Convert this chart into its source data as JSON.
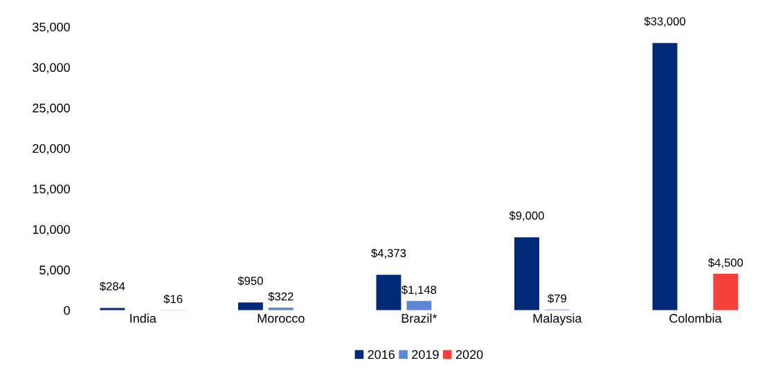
{
  "chart_data": {
    "type": "bar",
    "categories": [
      "India",
      "Morocco",
      "Brazil*",
      "Malaysia",
      "Colombia"
    ],
    "series": [
      {
        "name": "2016",
        "color": "#002a78",
        "values": [
          284,
          950,
          4373,
          9000,
          33000
        ],
        "value_labels": [
          "$284",
          "$950",
          "$4,373",
          "$9,000",
          "$33,000"
        ]
      },
      {
        "name": "2019",
        "color": "#5b87d6",
        "values": [
          null,
          322,
          1148,
          79,
          null
        ],
        "value_labels": [
          null,
          "$322",
          "$1,148",
          "$79",
          null
        ]
      },
      {
        "name": "2020",
        "color": "#f5403a",
        "values": [
          16,
          null,
          null,
          null,
          4500
        ],
        "value_labels": [
          "$16",
          null,
          null,
          null,
          "$4,500"
        ]
      }
    ],
    "ylim": [
      0,
      35000
    ],
    "yticks": [
      {
        "value": 0,
        "label": "0"
      },
      {
        "value": 5000,
        "label": "5,000"
      },
      {
        "value": 10000,
        "label": "10,000"
      },
      {
        "value": 15000,
        "label": "15,000"
      },
      {
        "value": 20000,
        "label": "20,000"
      },
      {
        "value": 25000,
        "label": "25,000"
      },
      {
        "value": 30000,
        "label": "30,000"
      },
      {
        "value": 35000,
        "label": "35,000"
      }
    ],
    "grid": false,
    "legend": "bottom"
  }
}
